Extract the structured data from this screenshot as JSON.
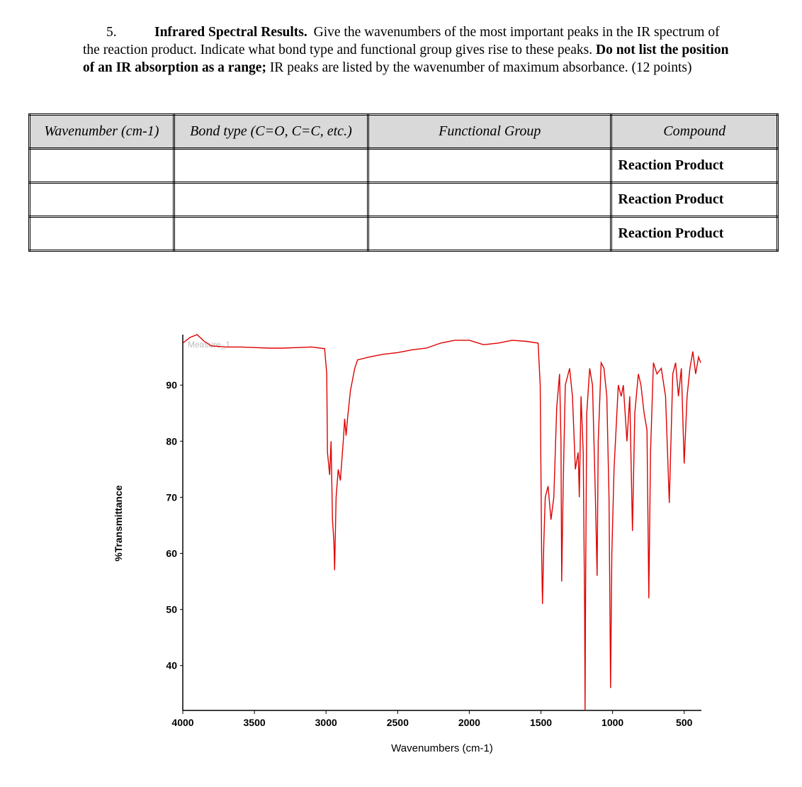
{
  "question": {
    "number": "5.",
    "title": "Infrared Spectral Results.",
    "text": "Give the wavenumbers of the most important peaks in the IR spectrum of the reaction product. Indicate what bond type and functional group gives rise to these peaks.",
    "bold_note": "Do not list the position of an IR absorption as a range;",
    "text2": "IR peaks are listed by the wavenumber of maximum absorbance. (12 points)"
  },
  "table": {
    "headers": [
      "Wavenumber (cm-1)",
      "Bond type (C=O, C=C, etc.)",
      "Functional Group",
      "Compound"
    ],
    "rows": [
      [
        "",
        "",
        "",
        "Reaction Product"
      ],
      [
        "",
        "",
        "",
        "Reaction Product"
      ],
      [
        "",
        "",
        "",
        "Reaction Product"
      ]
    ]
  },
  "chart_data": {
    "type": "line",
    "annotation": "Measure_1",
    "xlabel": "Wavenumbers (cm-1)",
    "ylabel": "%Transmittance",
    "xlim": [
      4000,
      380
    ],
    "ylim": [
      32,
      99
    ],
    "xticks": [
      4000,
      3500,
      3000,
      2500,
      2000,
      1500,
      1000,
      500
    ],
    "yticks": [
      40,
      50,
      60,
      70,
      80,
      90
    ],
    "series": [
      {
        "color": "#e00000",
        "x": [
          4000,
          3950,
          3900,
          3850,
          3800,
          3700,
          3600,
          3500,
          3400,
          3300,
          3200,
          3100,
          3010,
          2995,
          2990,
          2975,
          2965,
          2955,
          2945,
          2940,
          2930,
          2915,
          2900,
          2880,
          2870,
          2860,
          2850,
          2830,
          2800,
          2780,
          2700,
          2600,
          2500,
          2400,
          2300,
          2200,
          2100,
          2000,
          1900,
          1800,
          1700,
          1600,
          1520,
          1505,
          1495,
          1489,
          1480,
          1470,
          1450,
          1430,
          1410,
          1390,
          1370,
          1360,
          1355,
          1345,
          1330,
          1300,
          1280,
          1260,
          1240,
          1232,
          1220,
          1205,
          1195,
          1192,
          1188,
          1180,
          1160,
          1140,
          1120,
          1108,
          1100,
          1080,
          1060,
          1040,
          1025,
          1014,
          1005,
          990,
          960,
          940,
          925,
          900,
          880,
          861,
          845,
          820,
          802,
          780,
          760,
          747,
          735,
          715,
          690,
          660,
          630,
          604,
          580,
          560,
          540,
          520,
          500,
          480,
          460,
          440,
          420,
          400,
          385
        ],
        "y": [
          97.5,
          98.5,
          99,
          97.8,
          97,
          96.8,
          96.8,
          96.7,
          96.6,
          96.6,
          96.7,
          96.8,
          96.5,
          92,
          78,
          74,
          80,
          66,
          62,
          57,
          70,
          75,
          73,
          80,
          84,
          81,
          84,
          89,
          93,
          94.5,
          95,
          95.5,
          95.8,
          96.3,
          96.6,
          97.5,
          98,
          98,
          97.2,
          97.5,
          98,
          97.8,
          97.5,
          90,
          60,
          51,
          62,
          70,
          72,
          66,
          70,
          86,
          92,
          80,
          55,
          72,
          90,
          93,
          88,
          75,
          78,
          70,
          88,
          78,
          50,
          32,
          55,
          85,
          93,
          90,
          70,
          56,
          80,
          94,
          93,
          88,
          70,
          36,
          60,
          75,
          90,
          88,
          90,
          80,
          88,
          64,
          85,
          92,
          90,
          85,
          82,
          52,
          78,
          94,
          92,
          93,
          88,
          69,
          92,
          94,
          88,
          93,
          76,
          88,
          93,
          96,
          92,
          95,
          94
        ]
      }
    ]
  }
}
